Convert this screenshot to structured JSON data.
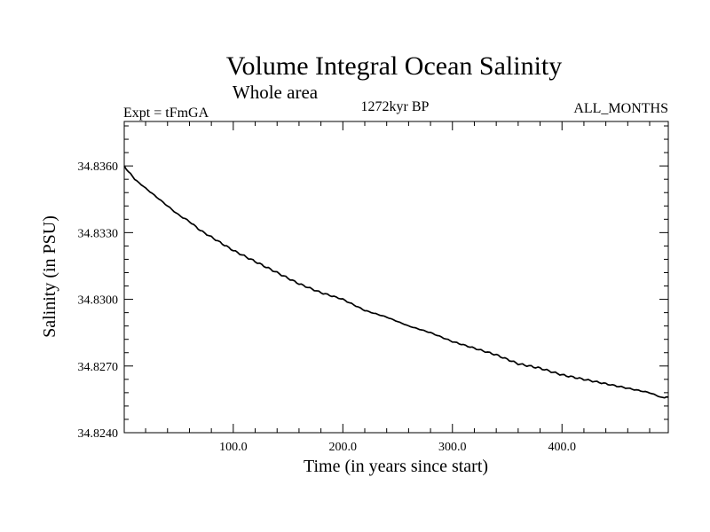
{
  "chart_data": {
    "type": "line",
    "title": "Volume Integral Ocean Salinity",
    "subtitle": "Whole area",
    "experiment_label": "Expt = tFmGA",
    "period_label": "1272kyr BP",
    "months_label": "ALL_MONTHS",
    "xlabel": "Time (in years since start)",
    "ylabel": "Salinity (in PSU)",
    "xlim": [
      0.5,
      497
    ],
    "ylim": [
      34.824,
      34.838
    ],
    "x_ticks": [
      100,
      200,
      300,
      400
    ],
    "x_tick_labels": [
      "100.0",
      "200.0",
      "300.0",
      "400.0"
    ],
    "y_ticks": [
      34.824,
      34.827,
      34.83,
      34.833,
      34.836
    ],
    "y_tick_labels": [
      "34.8240",
      "34.8270",
      "34.8300",
      "34.8330",
      "34.8360"
    ],
    "grid": false,
    "series": [
      {
        "name": "salinity",
        "x": [
          0.5,
          10,
          20,
          30,
          40,
          50,
          60,
          70,
          80,
          90,
          100,
          120,
          140,
          160,
          180,
          200,
          220,
          240,
          260,
          280,
          300,
          320,
          340,
          360,
          380,
          400,
          420,
          440,
          460,
          480,
          490,
          497
        ],
        "values": [
          34.836,
          34.8354,
          34.835,
          34.8346,
          34.8342,
          34.8338,
          34.8335,
          34.8331,
          34.8328,
          34.8325,
          34.8322,
          34.8317,
          34.8312,
          34.8307,
          34.8303,
          34.83,
          34.8295,
          34.8292,
          34.8288,
          34.8285,
          34.8281,
          34.8278,
          34.8275,
          34.8271,
          34.8269,
          34.8266,
          34.8264,
          34.8262,
          34.826,
          34.8258,
          34.8256,
          34.8256
        ]
      }
    ]
  }
}
